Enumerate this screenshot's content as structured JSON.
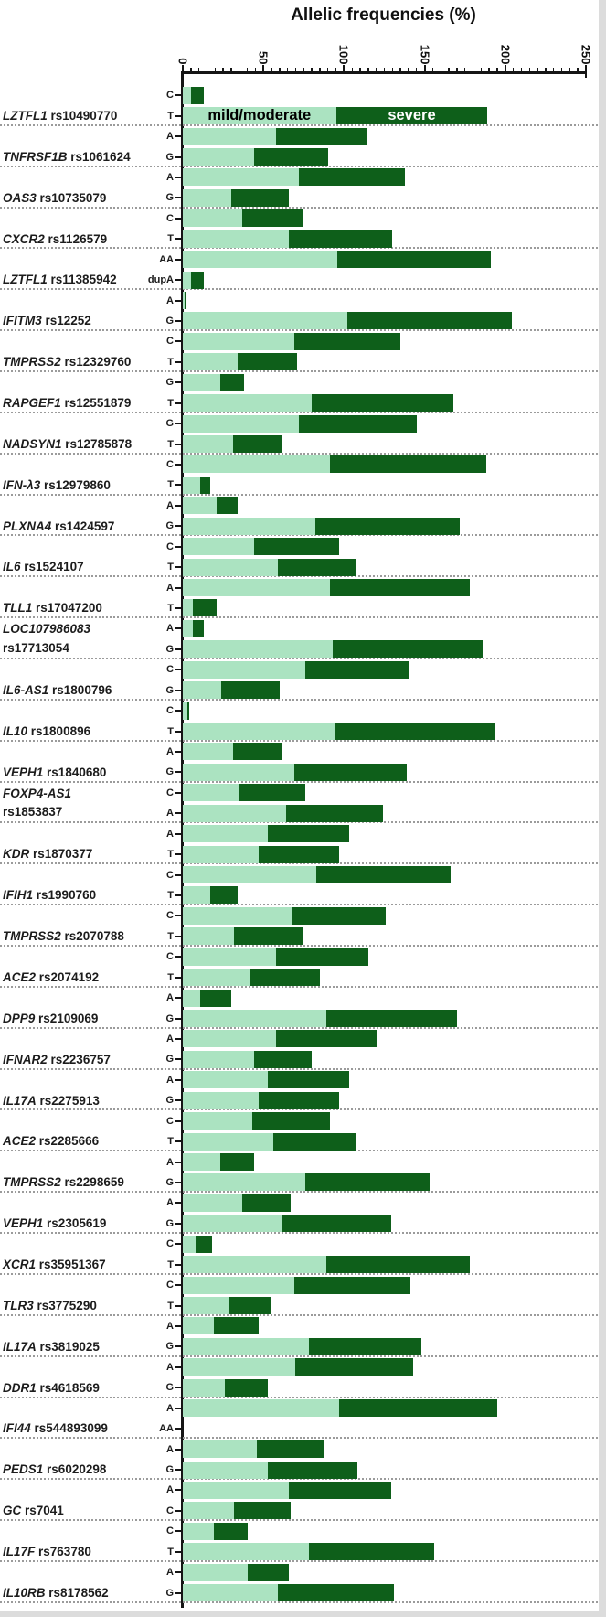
{
  "title": "Allelic frequencies (%)",
  "colors": {
    "mild": "#abe3c1",
    "severe": "#0e5f1a",
    "axis": "#151515",
    "separator": "#9b9b9b",
    "legend_mild_text": "#000000",
    "legend_severe_text": "#ffffff"
  },
  "chart_data": {
    "type": "bar",
    "orientation": "horizontal-stacked",
    "title": "Allelic frequencies (%)",
    "x_axis": {
      "min": 0,
      "max": 250,
      "major_tick_step": 50,
      "minor_tick_step": 5,
      "tick_labels": [
        "0",
        "50",
        "100",
        "150",
        "200",
        "250"
      ]
    },
    "legend": {
      "position": "inside-first-T-bar",
      "entries": [
        {
          "label": "mild/moderate",
          "color": "#abe3c1",
          "text_color": "#000000"
        },
        {
          "label": "severe",
          "color": "#0e5f1a",
          "text_color": "#ffffff"
        }
      ]
    },
    "series_names": [
      "mild/moderate",
      "severe"
    ],
    "groups": [
      {
        "gene": "LZTFL1",
        "rs": "rs10490770",
        "two_line": false,
        "rows": [
          {
            "allele": "C",
            "mild": 5,
            "severe": 8
          },
          {
            "allele": "T",
            "mild": 95,
            "severe": 94
          }
        ]
      },
      {
        "gene": "TNFRSF1B",
        "rs": "rs1061624",
        "two_line": false,
        "rows": [
          {
            "allele": "A",
            "mild": 58,
            "severe": 56
          },
          {
            "allele": "G",
            "mild": 44,
            "severe": 46
          }
        ]
      },
      {
        "gene": "OAS3",
        "rs": "rs10735079",
        "two_line": false,
        "rows": [
          {
            "allele": "A",
            "mild": 72,
            "severe": 66
          },
          {
            "allele": "G",
            "mild": 30,
            "severe": 36
          }
        ]
      },
      {
        "gene": "CXCR2",
        "rs": "rs1126579",
        "two_line": false,
        "rows": [
          {
            "allele": "C",
            "mild": 37,
            "severe": 38
          },
          {
            "allele": "T",
            "mild": 66,
            "severe": 64
          }
        ]
      },
      {
        "gene": "LZTFL1",
        "rs": "rs11385942",
        "two_line": false,
        "rows": [
          {
            "allele": "AA",
            "mild": 96,
            "severe": 95
          },
          {
            "allele": "dupA",
            "mild": 5,
            "severe": 8
          }
        ]
      },
      {
        "gene": "IFITM3",
        "rs": "rs12252",
        "two_line": false,
        "rows": [
          {
            "allele": "A",
            "mild": 1,
            "severe": 1
          },
          {
            "allele": "G",
            "mild": 102,
            "severe": 102
          }
        ]
      },
      {
        "gene": "TMPRSS2",
        "rs": "rs12329760",
        "two_line": false,
        "rows": [
          {
            "allele": "C",
            "mild": 69,
            "severe": 66
          },
          {
            "allele": "T",
            "mild": 34,
            "severe": 37
          }
        ]
      },
      {
        "gene": "RAPGEF1",
        "rs": "rs12551879",
        "two_line": false,
        "rows": [
          {
            "allele": "G",
            "mild": 23,
            "severe": 15
          },
          {
            "allele": "T",
            "mild": 80,
            "severe": 88
          }
        ]
      },
      {
        "gene": "NADSYN1",
        "rs": "rs12785878",
        "two_line": false,
        "rows": [
          {
            "allele": "G",
            "mild": 72,
            "severe": 73
          },
          {
            "allele": "T",
            "mild": 31,
            "severe": 30
          }
        ]
      },
      {
        "gene": "IFN-λ3",
        "rs": "rs12979860",
        "two_line": false,
        "rows": [
          {
            "allele": "C",
            "mild": 91,
            "severe": 97
          },
          {
            "allele": "T",
            "mild": 11,
            "severe": 6
          }
        ]
      },
      {
        "gene": "PLXNA4",
        "rs": "rs1424597",
        "two_line": false,
        "rows": [
          {
            "allele": "A",
            "mild": 21,
            "severe": 13
          },
          {
            "allele": "G",
            "mild": 82,
            "severe": 90
          }
        ]
      },
      {
        "gene": "IL6",
        "rs": "rs1524107",
        "two_line": false,
        "rows": [
          {
            "allele": "C",
            "mild": 44,
            "severe": 53
          },
          {
            "allele": "T",
            "mild": 59,
            "severe": 48
          }
        ]
      },
      {
        "gene": "TLL1",
        "rs": "rs17047200",
        "two_line": false,
        "rows": [
          {
            "allele": "A",
            "mild": 91,
            "severe": 87
          },
          {
            "allele": "T",
            "mild": 6,
            "severe": 15
          }
        ]
      },
      {
        "gene": "LOC107986083",
        "rs": "rs17713054",
        "two_line": true,
        "rows": [
          {
            "allele": "A",
            "mild": 6,
            "severe": 7
          },
          {
            "allele": "G",
            "mild": 93,
            "severe": 93
          }
        ]
      },
      {
        "gene": "IL6-AS1",
        "rs": "rs1800796",
        "two_line": false,
        "rows": [
          {
            "allele": "C",
            "mild": 76,
            "severe": 64
          },
          {
            "allele": "G",
            "mild": 24,
            "severe": 36
          }
        ]
      },
      {
        "gene": "IL10",
        "rs": "rs1800896",
        "two_line": false,
        "rows": [
          {
            "allele": "C",
            "mild": 3,
            "severe": 1
          },
          {
            "allele": "T",
            "mild": 94,
            "severe": 100
          }
        ]
      },
      {
        "gene": "VEPH1",
        "rs": "rs1840680",
        "two_line": false,
        "rows": [
          {
            "allele": "A",
            "mild": 31,
            "severe": 30
          },
          {
            "allele": "G",
            "mild": 69,
            "severe": 70
          }
        ]
      },
      {
        "gene": "FOXP4-AS1",
        "rs": "rs1853837",
        "two_line": true,
        "rows": [
          {
            "allele": "C",
            "mild": 35,
            "severe": 41
          },
          {
            "allele": "A",
            "mild": 64,
            "severe": 60
          }
        ]
      },
      {
        "gene": "KDR",
        "rs": "rs1870377",
        "two_line": false,
        "rows": [
          {
            "allele": "A",
            "mild": 53,
            "severe": 50
          },
          {
            "allele": "T",
            "mild": 47,
            "severe": 50
          }
        ]
      },
      {
        "gene": "IFIH1",
        "rs": "rs1990760",
        "two_line": false,
        "rows": [
          {
            "allele": "C",
            "mild": 83,
            "severe": 83
          },
          {
            "allele": "T",
            "mild": 17,
            "severe": 17
          }
        ]
      },
      {
        "gene": "TMPRSS2",
        "rs": "rs2070788",
        "two_line": false,
        "rows": [
          {
            "allele": "C",
            "mild": 68,
            "severe": 58
          },
          {
            "allele": "T",
            "mild": 32,
            "severe": 42
          }
        ]
      },
      {
        "gene": "ACE2",
        "rs": "rs2074192",
        "two_line": false,
        "rows": [
          {
            "allele": "C",
            "mild": 58,
            "severe": 57
          },
          {
            "allele": "T",
            "mild": 42,
            "severe": 43
          }
        ]
      },
      {
        "gene": "DPP9",
        "rs": "rs2109069",
        "two_line": false,
        "rows": [
          {
            "allele": "A",
            "mild": 11,
            "severe": 19
          },
          {
            "allele": "G",
            "mild": 89,
            "severe": 81
          }
        ]
      },
      {
        "gene": "IFNAR2",
        "rs": "rs2236757",
        "two_line": false,
        "rows": [
          {
            "allele": "A",
            "mild": 58,
            "severe": 62
          },
          {
            "allele": "G",
            "mild": 44,
            "severe": 36
          }
        ]
      },
      {
        "gene": "IL17A",
        "rs": "rs2275913",
        "two_line": false,
        "rows": [
          {
            "allele": "A",
            "mild": 53,
            "severe": 50
          },
          {
            "allele": "G",
            "mild": 47,
            "severe": 50
          }
        ]
      },
      {
        "gene": "ACE2",
        "rs": "rs2285666",
        "two_line": false,
        "rows": [
          {
            "allele": "C",
            "mild": 43,
            "severe": 48
          },
          {
            "allele": "T",
            "mild": 56,
            "severe": 51
          }
        ]
      },
      {
        "gene": "TMPRSS2",
        "rs": "rs2298659",
        "two_line": false,
        "rows": [
          {
            "allele": "A",
            "mild": 23,
            "severe": 21
          },
          {
            "allele": "G",
            "mild": 76,
            "severe": 77
          }
        ]
      },
      {
        "gene": "VEPH1",
        "rs": "rs2305619",
        "two_line": false,
        "rows": [
          {
            "allele": "A",
            "mild": 37,
            "severe": 30
          },
          {
            "allele": "G",
            "mild": 62,
            "severe": 67
          }
        ]
      },
      {
        "gene": "XCR1",
        "rs": "rs35951367",
        "two_line": false,
        "rows": [
          {
            "allele": "C",
            "mild": 8,
            "severe": 10
          },
          {
            "allele": "T",
            "mild": 89,
            "severe": 89
          }
        ]
      },
      {
        "gene": "TLR3",
        "rs": "rs3775290",
        "two_line": false,
        "rows": [
          {
            "allele": "C",
            "mild": 69,
            "severe": 72
          },
          {
            "allele": "T",
            "mild": 29,
            "severe": 26
          }
        ]
      },
      {
        "gene": "IL17A",
        "rs": "rs3819025",
        "two_line": false,
        "rows": [
          {
            "allele": "A",
            "mild": 19,
            "severe": 28
          },
          {
            "allele": "G",
            "mild": 78,
            "severe": 70
          }
        ]
      },
      {
        "gene": "DDR1",
        "rs": "rs4618569",
        "two_line": false,
        "rows": [
          {
            "allele": "A",
            "mild": 70,
            "severe": 73
          },
          {
            "allele": "G",
            "mild": 26,
            "severe": 27
          }
        ]
      },
      {
        "gene": "IFI44",
        "rs": "rs544893099",
        "two_line": false,
        "rows": [
          {
            "allele": "A",
            "mild": 97,
            "severe": 98
          },
          {
            "allele": "AA",
            "mild": 0,
            "severe": 0
          }
        ]
      },
      {
        "gene": "PEDS1",
        "rs": "rs6020298",
        "two_line": false,
        "rows": [
          {
            "allele": "A",
            "mild": 46,
            "severe": 42
          },
          {
            "allele": "G",
            "mild": 53,
            "severe": 55
          }
        ]
      },
      {
        "gene": "GC",
        "rs": "rs7041",
        "two_line": false,
        "rows": [
          {
            "allele": "A",
            "mild": 66,
            "severe": 63
          },
          {
            "allele": "C",
            "mild": 32,
            "severe": 35
          }
        ]
      },
      {
        "gene": "IL17F",
        "rs": "rs763780",
        "two_line": false,
        "rows": [
          {
            "allele": "C",
            "mild": 19,
            "severe": 21
          },
          {
            "allele": "T",
            "mild": 78,
            "severe": 78
          }
        ]
      },
      {
        "gene": "IL10RB",
        "rs": "rs8178562",
        "two_line": false,
        "rows": [
          {
            "allele": "A",
            "mild": 40,
            "severe": 26
          },
          {
            "allele": "G",
            "mild": 59,
            "severe": 72
          }
        ]
      }
    ]
  }
}
